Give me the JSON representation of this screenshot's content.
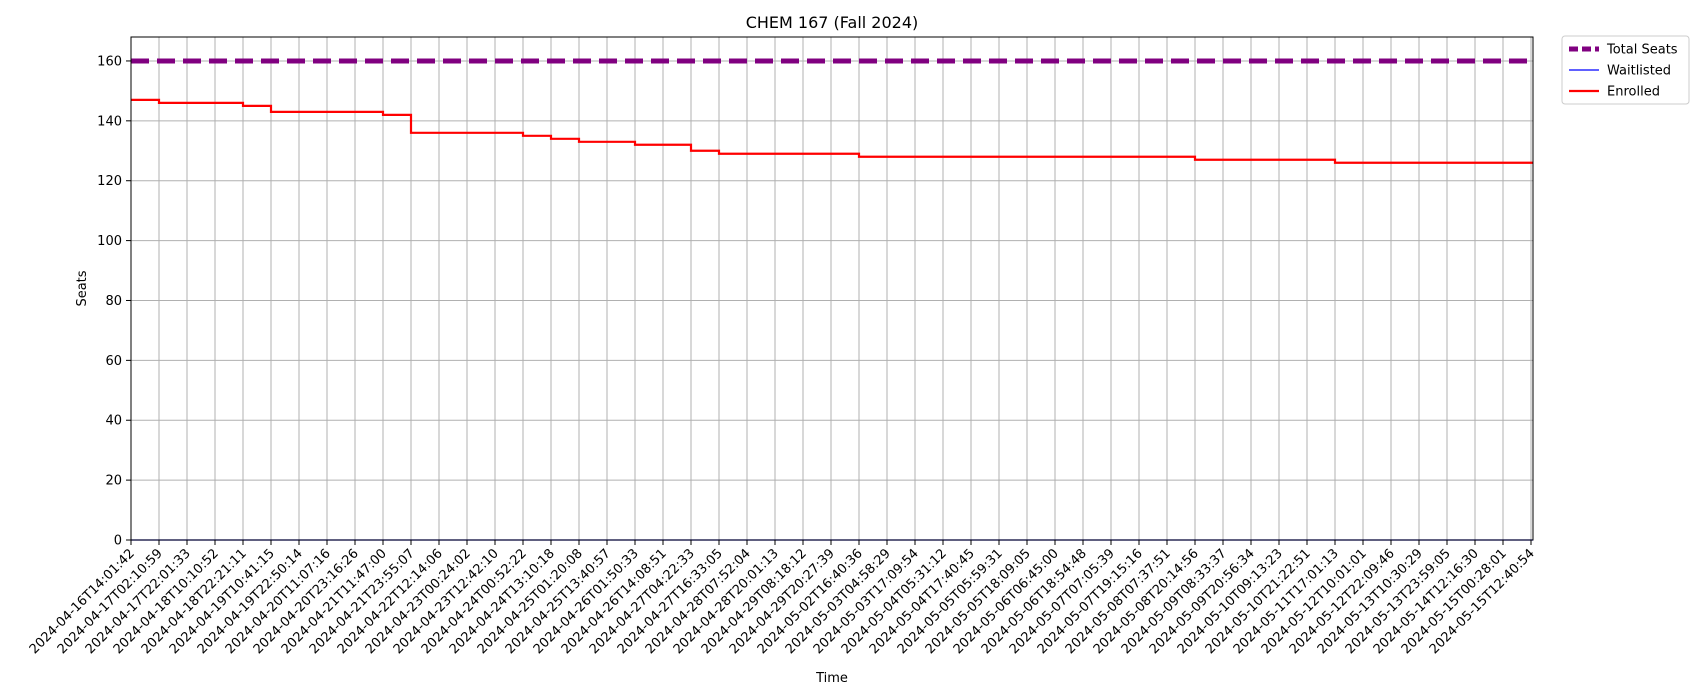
{
  "chart_data": {
    "type": "line",
    "title": "CHEM 167 (Fall 2024)",
    "xlabel": "Time",
    "ylabel": "Seats",
    "ylim": [
      0,
      168
    ],
    "yticks": [
      0,
      20,
      40,
      60,
      80,
      100,
      120,
      140,
      160
    ],
    "grid": true,
    "legend_position": "outside-top-right",
    "x": [
      "2024-04-16T14:01:42",
      "2024-04-17T02:10:59",
      "2024-04-17T22:01:33",
      "2024-04-18T10:10:52",
      "2024-04-18T22:21:11",
      "2024-04-19T10:41:15",
      "2024-04-19T22:50:14",
      "2024-04-20T11:07:16",
      "2024-04-20T23:16:26",
      "2024-04-21T11:47:00",
      "2024-04-21T23:55:07",
      "2024-04-22T12:14:06",
      "2024-04-23T00:24:02",
      "2024-04-23T12:42:10",
      "2024-04-24T00:52:22",
      "2024-04-24T13:10:18",
      "2024-04-25T01:20:08",
      "2024-04-25T13:40:57",
      "2024-04-26T01:50:33",
      "2024-04-26T14:08:51",
      "2024-04-27T04:22:33",
      "2024-04-27T16:33:05",
      "2024-04-28T07:52:04",
      "2024-04-28T20:01:13",
      "2024-04-29T08:18:12",
      "2024-04-29T20:27:39",
      "2024-05-02T16:40:36",
      "2024-05-03T04:58:29",
      "2024-05-03T17:09:54",
      "2024-05-04T05:31:12",
      "2024-05-04T17:40:45",
      "2024-05-05T05:59:31",
      "2024-05-05T18:09:05",
      "2024-05-06T06:45:00",
      "2024-05-06T18:54:48",
      "2024-05-07T07:05:39",
      "2024-05-07T19:15:16",
      "2024-05-08T07:37:51",
      "2024-05-08T20:14:56",
      "2024-05-09T08:33:37",
      "2024-05-09T20:56:34",
      "2024-05-10T09:13:23",
      "2024-05-10T21:22:51",
      "2024-05-11T17:01:13",
      "2024-05-12T10:01:01",
      "2024-05-12T22:09:46",
      "2024-05-13T10:30:29",
      "2024-05-13T23:59:05",
      "2024-05-14T12:16:30",
      "2024-05-15T00:28:01",
      "2024-05-15T12:40:54"
    ],
    "series": [
      {
        "name": "Total Seats",
        "color": "#800080",
        "style": "dashed",
        "values": [
          160,
          160,
          160,
          160,
          160,
          160,
          160,
          160,
          160,
          160,
          160,
          160,
          160,
          160,
          160,
          160,
          160,
          160,
          160,
          160,
          160,
          160,
          160,
          160,
          160,
          160,
          160,
          160,
          160,
          160,
          160,
          160,
          160,
          160,
          160,
          160,
          160,
          160,
          160,
          160,
          160,
          160,
          160,
          160,
          160,
          160,
          160,
          160,
          160,
          160,
          160
        ]
      },
      {
        "name": "Waitlisted",
        "color": "#0000ff",
        "style": "solid-thin",
        "values": [
          0,
          0,
          0,
          0,
          0,
          0,
          0,
          0,
          0,
          0,
          0,
          0,
          0,
          0,
          0,
          0,
          0,
          0,
          0,
          0,
          0,
          0,
          0,
          0,
          0,
          0,
          0,
          0,
          0,
          0,
          0,
          0,
          0,
          0,
          0,
          0,
          0,
          0,
          0,
          0,
          0,
          0,
          0,
          0,
          0,
          0,
          0,
          0,
          0,
          0,
          0
        ]
      },
      {
        "name": "Enrolled",
        "color": "#ff0000",
        "style": "solid-step",
        "values": [
          147,
          146,
          146,
          146,
          145,
          143,
          143,
          143,
          143,
          142,
          136,
          136,
          136,
          136,
          135,
          134,
          133,
          133,
          132,
          132,
          130,
          129,
          129,
          129,
          129,
          129,
          128,
          128,
          128,
          128,
          128,
          128,
          128,
          128,
          128,
          128,
          128,
          128,
          127,
          127,
          127,
          127,
          127,
          126,
          126,
          126,
          126,
          126,
          126,
          126,
          126
        ]
      }
    ]
  }
}
